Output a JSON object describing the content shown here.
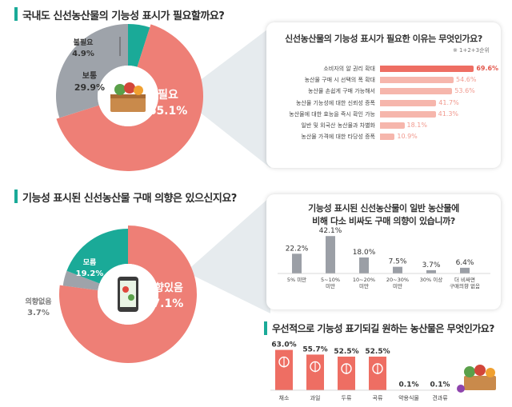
{
  "colors": {
    "accent": "#1aaa98",
    "salmon": "#ee7f76",
    "grey": "#9ea3aa",
    "bar_grey": "#9b9fa6"
  },
  "q1": {
    "title": "국내도 신선농산물의 기능성 표시가 필요할까요?"
  },
  "q2": {
    "title": "기능성 표시된 신선농산물 구매 의향은 있으신지요?"
  },
  "q3": {
    "title": "우선적으로 기능성 표기되길 원하는 농산물은 무엇인가요?"
  },
  "chart_data": [
    {
      "type": "pie",
      "slices": [
        {
          "label": "필요",
          "value": 65.1,
          "display": "65.1%",
          "color": "#ee7f76"
        },
        {
          "label": "보통",
          "value": 29.9,
          "display": "29.9%",
          "color": "#9ea3aa"
        },
        {
          "label": "불필요",
          "value": 4.9,
          "display": "4.9%",
          "color": "#1aaa98"
        }
      ]
    },
    {
      "type": "bar",
      "orientation": "horizontal",
      "title": "신선농산물의 기능성 표시가 필요한 이유는 무엇인가요?",
      "note": "※ 1+2+3순위",
      "categories": [
        "소비자의 알 권리 확대",
        "농산물 구매 시 선택의 폭 확대",
        "농산물 손쉽게 구매 가능해서",
        "농산물 기능성에 대한 신뢰성 증폭",
        "농산물에 대한 효능을 즉시 확인 가능",
        "일반 및 외국산 농산물과 차별화",
        "농산물 가격에 대한 타당성 증폭"
      ],
      "values": [
        69.6,
        54.6,
        53.6,
        41.7,
        41.3,
        18.1,
        10.9
      ],
      "labels": [
        "69.6%",
        "54.6%",
        "53.6%",
        "41.7%",
        "41.3%",
        "18.1%",
        "10.9%"
      ],
      "xlim": [
        0,
        70
      ]
    },
    {
      "type": "pie",
      "slices": [
        {
          "label": "의향있음",
          "value": 77.1,
          "display": "77.1%",
          "color": "#ee7f76"
        },
        {
          "label": "의향없음",
          "value": 3.7,
          "display": "3.7%",
          "color": "#9ea3aa"
        },
        {
          "label": "모름",
          "value": 19.2,
          "display": "19.2%",
          "color": "#1aaa98"
        }
      ]
    },
    {
      "type": "bar",
      "title": "기능성 표시된 신선농산물이 일반 농산물에 비해 다소 비싸도 구매 의향이 있습니까?",
      "categories": [
        "5% 미만",
        "5~10% 미만",
        "10~20% 미만",
        "20~30% 미만",
        "30% 이상",
        "더 비싸면 구매의향 없음"
      ],
      "cat_lines": [
        [
          "5% 미만"
        ],
        [
          "5~10%",
          "미만"
        ],
        [
          "10~20%",
          "미만"
        ],
        [
          "20~30%",
          "미만"
        ],
        [
          "30% 이상"
        ],
        [
          "더 비싸면",
          "구매의향 없음"
        ]
      ],
      "values": [
        22.2,
        42.1,
        18.0,
        7.5,
        3.7,
        6.4
      ],
      "labels": [
        "22.2%",
        "42.1%",
        "18.0%",
        "7.5%",
        "3.7%",
        "6.4%"
      ],
      "ylim": [
        0,
        45
      ]
    },
    {
      "type": "bar",
      "categories": [
        "채소",
        "과일",
        "두류",
        "곡류",
        "약용식물",
        "견과류"
      ],
      "values": [
        63.0,
        55.7,
        52.5,
        52.5,
        0.1,
        0.1
      ],
      "labels": [
        "63.0%",
        "55.7%",
        "52.5%",
        "52.5%",
        "0.1%",
        "0.1%"
      ],
      "icons": [
        "leaf-icon",
        "apple-icon",
        "bean-icon",
        "grain-icon",
        "",
        ""
      ],
      "ylim": [
        0,
        65
      ]
    }
  ]
}
